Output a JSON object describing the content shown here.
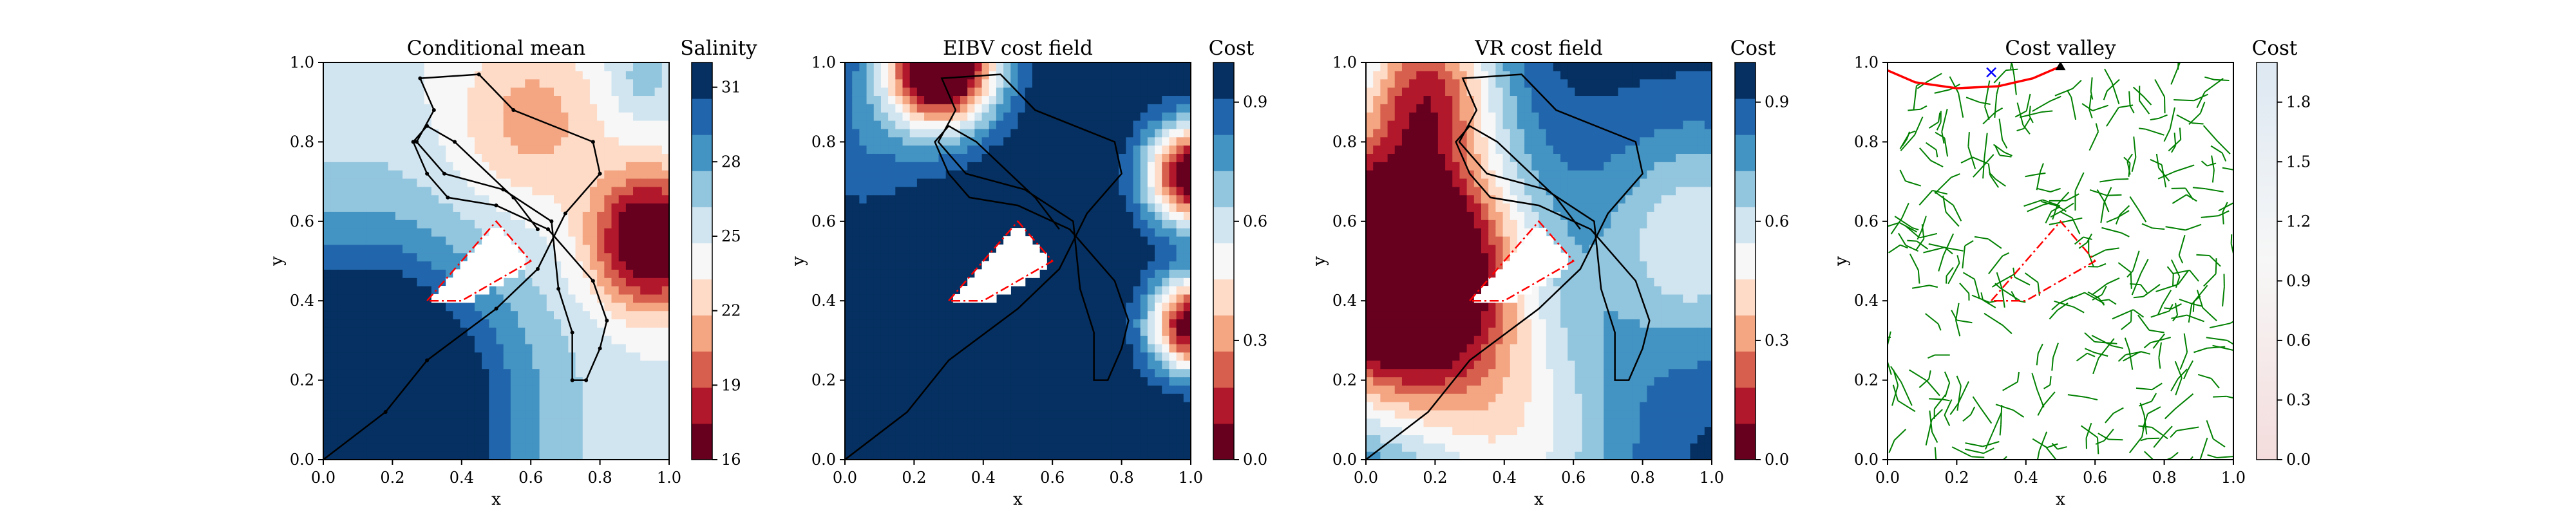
{
  "figure": {
    "panels": [
      "Conditional mean",
      "EIBV cost field",
      "VR cost field",
      "Cost valley"
    ]
  },
  "colors": {
    "rdbu": [
      "#67001f",
      "#b2182b",
      "#d6604d",
      "#f4a582",
      "#fddbc7",
      "#f7f7f7",
      "#d1e5f0",
      "#92c5de",
      "#4393c3",
      "#2166ac",
      "#053061"
    ],
    "path": "#000000",
    "obstacle_outline": "#ff0000",
    "tree": "#008000",
    "planned_path": "#ff0000",
    "start_marker": "#0000ff",
    "cost_valley_cmap": [
      "#f4dcdc",
      "#f7f7f7",
      "#dde8f2"
    ]
  },
  "chart_data": [
    {
      "type": "heatmap",
      "title": "Conditional mean",
      "xlabel": "x",
      "ylabel": "y",
      "xlim": [
        0,
        1
      ],
      "ylim": [
        0,
        1
      ],
      "xticks": [
        "0.0",
        "0.2",
        "0.4",
        "0.6",
        "0.8",
        "1.0"
      ],
      "yticks": [
        "0.0",
        "0.2",
        "0.4",
        "0.6",
        "0.8",
        "1.0"
      ],
      "colorbar": {
        "label": "Salinity",
        "min": 16,
        "max": 32,
        "ticks": [
          "16",
          "19",
          "22",
          "25",
          "28",
          "31"
        ],
        "tick_values": [
          16,
          19,
          22,
          25,
          28,
          31
        ],
        "levels": 11,
        "cmap": "RdBu"
      },
      "field_features": {
        "background": 25,
        "peaks": [
          {
            "x": 0.6,
            "y": 0.85,
            "value": 21,
            "r": 0.22
          },
          {
            "x": 0.95,
            "y": 0.55,
            "value": 14,
            "r": 0.17
          },
          {
            "x": 0.92,
            "y": 0.96,
            "value": 27,
            "r": 0.1
          }
        ],
        "troughs": [
          {
            "x": 0.02,
            "y": 0.02,
            "value": 33,
            "r": 0.5
          }
        ],
        "gradient": [
          {
            "x": 0.15,
            "y": 0.15,
            "value": 31,
            "r": 0.35
          }
        ]
      },
      "obstacle": [
        [
          0.3,
          0.4
        ],
        [
          0.5,
          0.6
        ],
        [
          0.6,
          0.5
        ],
        [
          0.4,
          0.4
        ],
        [
          0.3,
          0.4
        ]
      ],
      "path": [
        [
          0.0,
          0.0
        ],
        [
          0.18,
          0.12
        ],
        [
          0.3,
          0.25
        ],
        [
          0.5,
          0.38
        ],
        [
          0.62,
          0.48
        ],
        [
          0.7,
          0.62
        ],
        [
          0.8,
          0.72
        ],
        [
          0.78,
          0.8
        ],
        [
          0.55,
          0.88
        ],
        [
          0.45,
          0.97
        ],
        [
          0.28,
          0.96
        ],
        [
          0.32,
          0.88
        ],
        [
          0.27,
          0.8
        ],
        [
          0.35,
          0.72
        ],
        [
          0.52,
          0.68
        ],
        [
          0.66,
          0.6
        ],
        [
          0.68,
          0.43
        ],
        [
          0.72,
          0.32
        ],
        [
          0.72,
          0.2
        ],
        [
          0.76,
          0.2
        ],
        [
          0.8,
          0.28
        ],
        [
          0.82,
          0.35
        ],
        [
          0.78,
          0.45
        ],
        [
          0.65,
          0.58
        ],
        [
          0.5,
          0.64
        ],
        [
          0.36,
          0.66
        ],
        [
          0.3,
          0.72
        ],
        [
          0.26,
          0.8
        ],
        [
          0.3,
          0.84
        ],
        [
          0.38,
          0.8
        ],
        [
          0.55,
          0.66
        ],
        [
          0.62,
          0.58
        ]
      ]
    },
    {
      "type": "heatmap",
      "title": "EIBV cost field",
      "xlabel": "x",
      "ylabel": "y",
      "xlim": [
        0,
        1
      ],
      "ylim": [
        0,
        1
      ],
      "xticks": [
        "0.0",
        "0.2",
        "0.4",
        "0.6",
        "0.8",
        "1.0"
      ],
      "yticks": [
        "0.0",
        "0.2",
        "0.4",
        "0.6",
        "0.8",
        "1.0"
      ],
      "colorbar": {
        "label": "Cost",
        "min": 0,
        "max": 1,
        "ticks": [
          "0.0",
          "0.3",
          "0.6",
          "0.9"
        ],
        "tick_values": [
          0,
          0.3,
          0.6,
          0.9
        ],
        "levels": 11,
        "cmap": "RdBu"
      },
      "field_features": {
        "background": 1.0,
        "peaks": [
          {
            "x": 0.28,
            "y": 1.0,
            "value": -0.3,
            "r": 0.16
          },
          {
            "x": 1.0,
            "y": 0.72,
            "value": -0.05,
            "r": 0.13
          },
          {
            "x": 1.0,
            "y": 0.34,
            "value": 0.0,
            "r": 0.12
          },
          {
            "x": 0.05,
            "y": 0.8,
            "value": 0.85,
            "r": 0.2
          }
        ],
        "troughs": []
      },
      "obstacle": [
        [
          0.3,
          0.4
        ],
        [
          0.5,
          0.6
        ],
        [
          0.6,
          0.5
        ],
        [
          0.4,
          0.4
        ],
        [
          0.3,
          0.4
        ]
      ],
      "path": [
        [
          0.0,
          0.0
        ],
        [
          0.18,
          0.12
        ],
        [
          0.3,
          0.25
        ],
        [
          0.5,
          0.38
        ],
        [
          0.62,
          0.48
        ],
        [
          0.7,
          0.62
        ],
        [
          0.8,
          0.72
        ],
        [
          0.78,
          0.8
        ],
        [
          0.55,
          0.88
        ],
        [
          0.45,
          0.97
        ],
        [
          0.28,
          0.96
        ],
        [
          0.32,
          0.88
        ],
        [
          0.27,
          0.8
        ],
        [
          0.35,
          0.72
        ],
        [
          0.52,
          0.68
        ],
        [
          0.66,
          0.6
        ],
        [
          0.68,
          0.43
        ],
        [
          0.72,
          0.32
        ],
        [
          0.72,
          0.2
        ],
        [
          0.76,
          0.2
        ],
        [
          0.8,
          0.28
        ],
        [
          0.82,
          0.35
        ],
        [
          0.78,
          0.45
        ],
        [
          0.65,
          0.58
        ],
        [
          0.5,
          0.64
        ],
        [
          0.36,
          0.66
        ],
        [
          0.3,
          0.72
        ],
        [
          0.26,
          0.8
        ],
        [
          0.3,
          0.84
        ],
        [
          0.38,
          0.8
        ],
        [
          0.55,
          0.66
        ],
        [
          0.62,
          0.58
        ]
      ]
    },
    {
      "type": "heatmap",
      "title": "VR cost field",
      "xlabel": "x",
      "ylabel": "y",
      "xlim": [
        0,
        1
      ],
      "ylim": [
        0,
        1
      ],
      "xticks": [
        "0.0",
        "0.2",
        "0.4",
        "0.6",
        "0.8",
        "1.0"
      ],
      "yticks": [
        "0.0",
        "0.2",
        "0.4",
        "0.6",
        "0.8",
        "1.0"
      ],
      "colorbar": {
        "label": "Cost",
        "min": 0,
        "max": 1,
        "ticks": [
          "0.0",
          "0.3",
          "0.6",
          "0.9"
        ],
        "tick_values": [
          0,
          0.3,
          0.6,
          0.9
        ],
        "levels": 11,
        "cmap": "RdBu"
      },
      "field_features": {
        "background": 0.95,
        "peaks": [
          {
            "x": 0.1,
            "y": 0.48,
            "value": -0.55,
            "r": 0.32
          },
          {
            "x": 0.18,
            "y": 0.95,
            "value": 0.3,
            "r": 0.2
          },
          {
            "x": 0.45,
            "y": 0.05,
            "value": 0.55,
            "r": 0.3
          },
          {
            "x": 0.95,
            "y": 0.55,
            "value": 0.55,
            "r": 0.28
          }
        ],
        "troughs": []
      },
      "obstacle": [
        [
          0.3,
          0.4
        ],
        [
          0.5,
          0.6
        ],
        [
          0.6,
          0.5
        ],
        [
          0.4,
          0.4
        ],
        [
          0.3,
          0.4
        ]
      ],
      "path": [
        [
          0.0,
          0.0
        ],
        [
          0.18,
          0.12
        ],
        [
          0.3,
          0.25
        ],
        [
          0.5,
          0.38
        ],
        [
          0.62,
          0.48
        ],
        [
          0.7,
          0.62
        ],
        [
          0.8,
          0.72
        ],
        [
          0.78,
          0.8
        ],
        [
          0.55,
          0.88
        ],
        [
          0.45,
          0.97
        ],
        [
          0.28,
          0.96
        ],
        [
          0.32,
          0.88
        ],
        [
          0.27,
          0.8
        ],
        [
          0.35,
          0.72
        ],
        [
          0.52,
          0.68
        ],
        [
          0.66,
          0.6
        ],
        [
          0.68,
          0.43
        ],
        [
          0.72,
          0.32
        ],
        [
          0.72,
          0.2
        ],
        [
          0.76,
          0.2
        ],
        [
          0.8,
          0.28
        ],
        [
          0.82,
          0.35
        ],
        [
          0.78,
          0.45
        ],
        [
          0.65,
          0.58
        ],
        [
          0.5,
          0.64
        ],
        [
          0.36,
          0.66
        ],
        [
          0.3,
          0.72
        ],
        [
          0.26,
          0.8
        ],
        [
          0.3,
          0.84
        ],
        [
          0.38,
          0.8
        ],
        [
          0.55,
          0.66
        ],
        [
          0.62,
          0.58
        ]
      ]
    },
    {
      "type": "scatter",
      "title": "Cost valley",
      "xlabel": "x",
      "ylabel": "y",
      "xlim": [
        0,
        1
      ],
      "ylim": [
        0,
        1
      ],
      "xticks": [
        "0.0",
        "0.2",
        "0.4",
        "0.6",
        "0.8",
        "1.0"
      ],
      "yticks": [
        "0.0",
        "0.2",
        "0.4",
        "0.6",
        "0.8",
        "1.0"
      ],
      "colorbar": {
        "label": "Cost",
        "min": 0,
        "max": 2,
        "ticks": [
          "0.0",
          "0.3",
          "0.6",
          "0.9",
          "1.2",
          "1.5",
          "1.8"
        ],
        "tick_values": [
          0,
          0.3,
          0.6,
          0.9,
          1.2,
          1.5,
          1.8
        ],
        "cmap": "RdBu"
      },
      "obstacle": [
        [
          0.3,
          0.4
        ],
        [
          0.5,
          0.6
        ],
        [
          0.6,
          0.5
        ],
        [
          0.4,
          0.4
        ],
        [
          0.3,
          0.4
        ]
      ],
      "planned_path": [
        [
          0.0,
          0.98
        ],
        [
          0.08,
          0.95
        ],
        [
          0.2,
          0.935
        ],
        [
          0.32,
          0.94
        ],
        [
          0.42,
          0.96
        ],
        [
          0.5,
          0.99
        ]
      ],
      "target_marker": [
        0.5,
        0.99
      ],
      "start_marker": [
        0.3,
        0.975
      ],
      "tree": {
        "node_count": 260,
        "edge_length": 0.045
      }
    }
  ]
}
